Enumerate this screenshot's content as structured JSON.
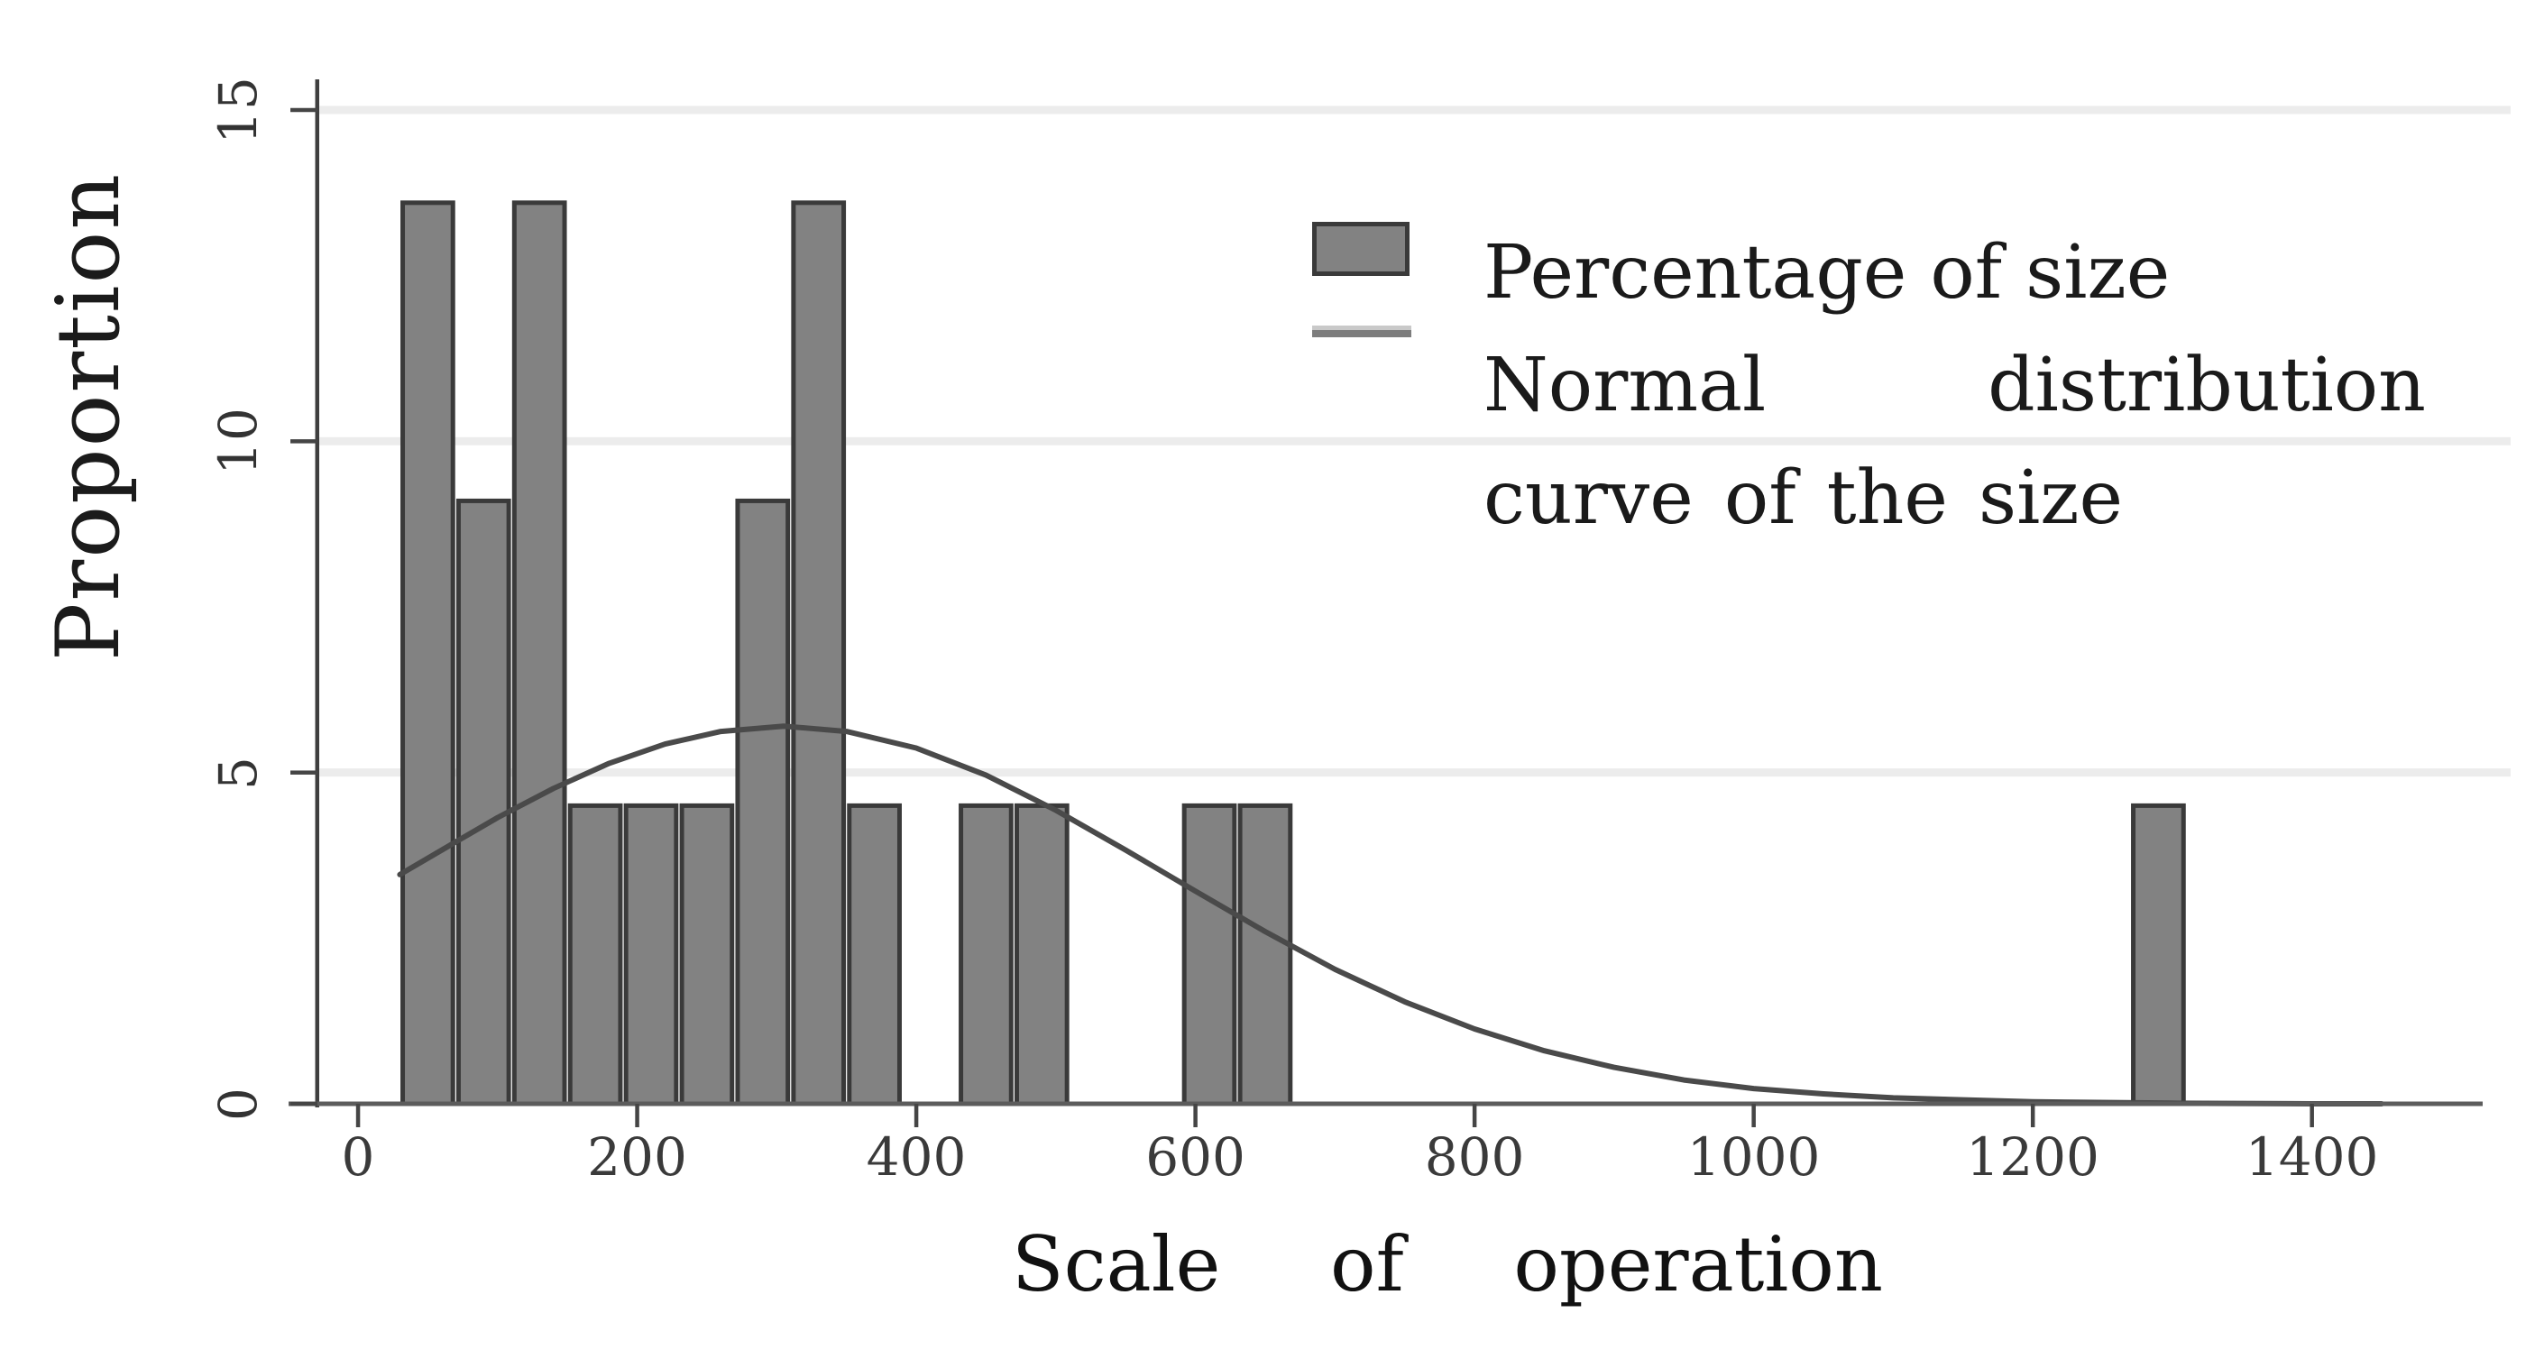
{
  "chart_data": {
    "type": "bar",
    "subtype": "histogram with overlaid normal density curve",
    "title": "",
    "xlabel": "Scale of operation",
    "ylabel": "Proportion",
    "x_ticks": [
      "0",
      "200",
      "400",
      "600",
      "800",
      "1000",
      "1200",
      "1400"
    ],
    "x_tick_values": [
      0,
      200,
      400,
      600,
      800,
      1000,
      1200,
      1400
    ],
    "y_ticks": [
      "0",
      "5",
      "10",
      "15"
    ],
    "y_tick_values": [
      0,
      5,
      10,
      15
    ],
    "xlim": [
      -50,
      1522
    ],
    "ylim": [
      0,
      15.9
    ],
    "grid": "light horizontal gridlines at y = 5, 10, 15",
    "bin_width": 40,
    "bar_width_units": 36,
    "bars": [
      {
        "center": 50,
        "height": 13.6
      },
      {
        "center": 90,
        "height": 9.1
      },
      {
        "center": 130,
        "height": 13.6
      },
      {
        "center": 170,
        "height": 4.5
      },
      {
        "center": 210,
        "height": 4.5
      },
      {
        "center": 250,
        "height": 4.5
      },
      {
        "center": 290,
        "height": 9.1
      },
      {
        "center": 330,
        "height": 13.6
      },
      {
        "center": 370,
        "height": 4.5
      },
      {
        "center": 450,
        "height": 4.5
      },
      {
        "center": 490,
        "height": 4.5
      },
      {
        "center": 610,
        "height": 4.5
      },
      {
        "center": 650,
        "height": 4.5
      },
      {
        "center": 1290,
        "height": 4.5
      }
    ],
    "curve": {
      "description": "normal distribution curve, mean ~305, sd ~275, peak ~5.7",
      "points": [
        [
          30,
          3.46
        ],
        [
          60,
          3.83
        ],
        [
          100,
          4.32
        ],
        [
          140,
          4.76
        ],
        [
          180,
          5.14
        ],
        [
          220,
          5.43
        ],
        [
          260,
          5.62
        ],
        [
          305,
          5.7
        ],
        [
          350,
          5.62
        ],
        [
          400,
          5.37
        ],
        [
          450,
          4.96
        ],
        [
          500,
          4.43
        ],
        [
          550,
          3.83
        ],
        [
          600,
          3.21
        ],
        [
          650,
          2.6
        ],
        [
          700,
          2.03
        ],
        [
          750,
          1.54
        ],
        [
          800,
          1.13
        ],
        [
          850,
          0.8
        ],
        [
          900,
          0.55
        ],
        [
          950,
          0.36
        ],
        [
          1000,
          0.23
        ],
        [
          1050,
          0.15
        ],
        [
          1100,
          0.09
        ],
        [
          1200,
          0.03
        ],
        [
          1300,
          0.01
        ],
        [
          1400,
          0.0
        ],
        [
          1450,
          0.0
        ]
      ]
    },
    "legend": {
      "position": "top-right inside plot, no border",
      "items": [
        {
          "swatch": "bar",
          "label": "Percentage of size"
        },
        {
          "swatch": "line",
          "label": "Normal distribution curve of the size",
          "line1_left": "Normal",
          "line1_right": "distribution",
          "line2": "curve of the size"
        }
      ]
    },
    "colors": {
      "bar_fill": "#828282",
      "bar_stroke": "#3a3a3a",
      "curve": "#4a4a4a",
      "gridline": "#ececec",
      "y_axis": "#3f3f3f",
      "x_axis": "#5c5c5c",
      "tick": "#454545",
      "tick_label": "#3a3a3a",
      "text": "#161616",
      "background": "#ffffff"
    }
  }
}
